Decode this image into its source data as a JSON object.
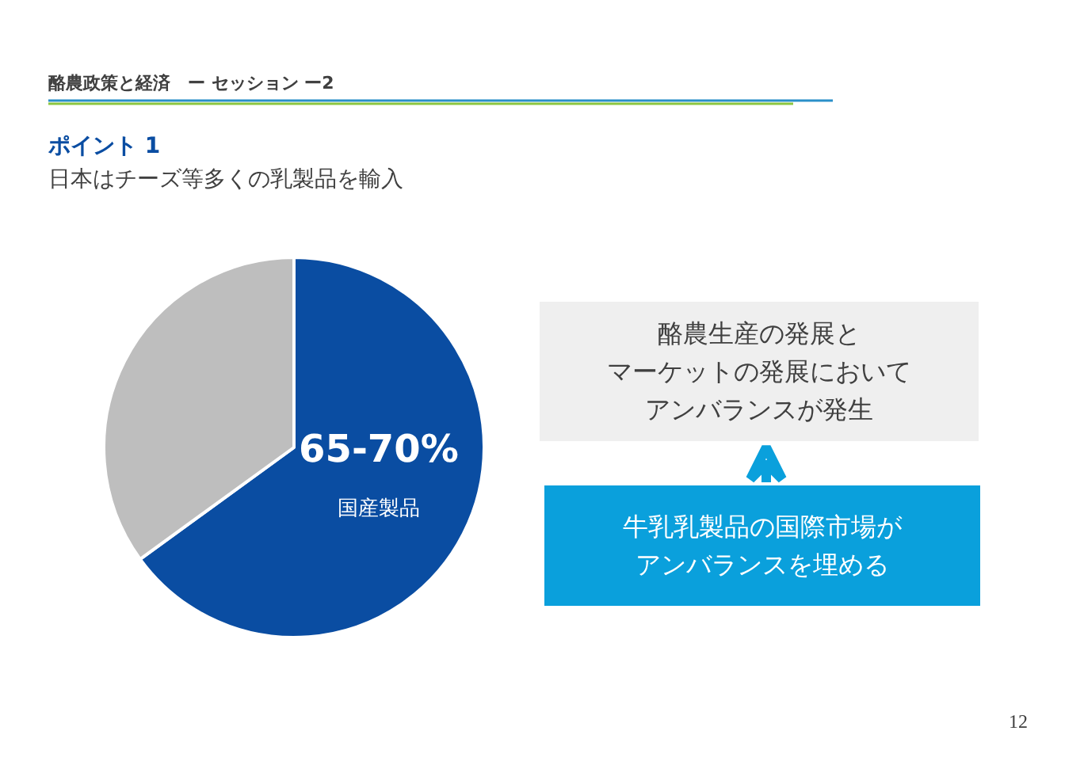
{
  "chart_data": {
    "type": "pie",
    "title": "ポイント 1",
    "subtitle": "日本はチーズ等多くの乳製品を輸入",
    "categories": [
      "国産製品",
      null
    ],
    "values": [
      65,
      35
    ],
    "colors": [
      "#0a4da2",
      "#bebebe"
    ],
    "value_labels": [
      "65-70%",
      null
    ],
    "legend": false,
    "annotations": [
      "酪農政策と経済　ー セッション ー2",
      "酪農生産の発展と",
      "マーケットの発展において",
      "アンバランスが発生",
      "牛乳乳製品の国際市場が",
      "アンバランスを埋める",
      "12"
    ]
  }
}
